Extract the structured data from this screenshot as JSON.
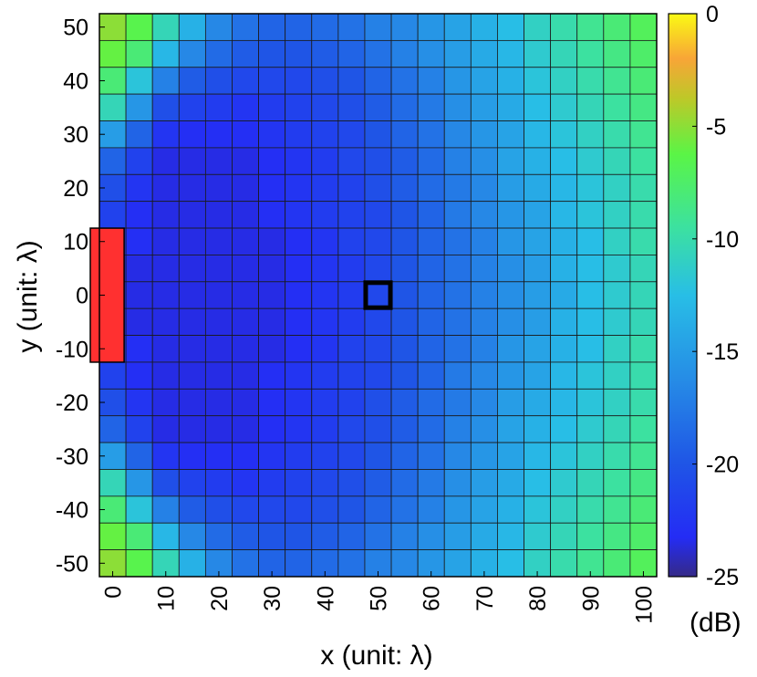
{
  "chart_data": {
    "type": "heatmap",
    "xlabel": "x (unit: λ)",
    "ylabel": "y (unit: λ)",
    "colorbar_label": "(dB)",
    "x": [
      0,
      5,
      10,
      15,
      20,
      25,
      30,
      35,
      40,
      45,
      50,
      55,
      60,
      65,
      70,
      75,
      80,
      85,
      90,
      95,
      100
    ],
    "y": [
      50,
      45,
      40,
      35,
      30,
      25,
      20,
      15,
      10,
      5,
      0,
      -5,
      -10,
      -15,
      -20,
      -25,
      -30,
      -35,
      -40,
      -45,
      -50
    ],
    "x_ticks": [
      0,
      10,
      20,
      30,
      40,
      50,
      60,
      70,
      80,
      90,
      100
    ],
    "y_ticks": [
      50,
      40,
      30,
      20,
      10,
      0,
      -10,
      -20,
      -30,
      -40,
      -50
    ],
    "xlim": [
      -2.5,
      102.5
    ],
    "ylim": [
      -52.5,
      52.5
    ],
    "clim": [
      -25,
      0
    ],
    "colorbar_ticks": [
      0,
      -5,
      -10,
      -15,
      -20,
      -25
    ],
    "colormap": "parula",
    "values": [
      [
        -5,
        -6.5,
        -10.5,
        -13.5,
        -16.5,
        -18,
        -19,
        -19,
        -18.5,
        -18,
        -17,
        -16.5,
        -15.5,
        -14.5,
        -13.5,
        -12.5,
        -11,
        -10,
        -9,
        -8,
        -7
      ],
      [
        -6,
        -8,
        -13,
        -16.5,
        -18.5,
        -19.5,
        -20,
        -20,
        -19.5,
        -19,
        -18,
        -17,
        -16,
        -15,
        -14,
        -13,
        -11.5,
        -10.5,
        -9.5,
        -8.5,
        -7.5
      ],
      [
        -8,
        -12,
        -17,
        -19.5,
        -20.5,
        -21,
        -21,
        -21,
        -20.5,
        -20,
        -19,
        -18,
        -17,
        -15.5,
        -14.5,
        -13.5,
        -12,
        -11,
        -10,
        -9,
        -8
      ],
      [
        -10.5,
        -15.5,
        -20.5,
        -21.5,
        -22,
        -22.5,
        -22,
        -21.5,
        -21,
        -20.5,
        -19.5,
        -18.5,
        -17.5,
        -16,
        -15,
        -14,
        -12.5,
        -11.5,
        -10.5,
        -9.5,
        -8.5
      ],
      [
        -15,
        -19,
        -22.5,
        -23,
        -23,
        -23,
        -22.5,
        -22,
        -21.5,
        -21,
        -20,
        -19,
        -18,
        -16.5,
        -15.5,
        -14.5,
        -13,
        -12,
        -11,
        -10,
        -9
      ],
      [
        -19,
        -21.5,
        -23.5,
        -23.5,
        -23.5,
        -23.5,
        -23,
        -22.5,
        -22,
        -21,
        -20.5,
        -19.5,
        -18.5,
        -17,
        -16,
        -14.5,
        -13.5,
        -12.5,
        -11.5,
        -10.5,
        -9.5
      ],
      [
        -20.5,
        -22.5,
        -23.5,
        -23.5,
        -23.5,
        -23.5,
        -23,
        -22.5,
        -22,
        -21.5,
        -20.5,
        -19.5,
        -18.5,
        -17.5,
        -16.5,
        -15,
        -14,
        -13,
        -12,
        -11,
        -10
      ],
      [
        -21.5,
        -23,
        -23.5,
        -23.5,
        -23.5,
        -23.5,
        -23,
        -22.5,
        -22,
        -21.5,
        -21,
        -20,
        -19,
        -17.5,
        -16.5,
        -15.5,
        -14.5,
        -13,
        -12,
        -11,
        -10
      ],
      [
        -22,
        -23,
        -23.5,
        -23.5,
        -23.5,
        -23.5,
        -23.5,
        -23,
        -22.5,
        -21.5,
        -21,
        -20,
        -19,
        -18,
        -17,
        -15.5,
        -14.5,
        -13.5,
        -12.5,
        -11,
        -10
      ],
      [
        -22.5,
        -23.5,
        -23.5,
        -23.5,
        -23.5,
        -23.5,
        -23.5,
        -23,
        -22.5,
        -22,
        -21,
        -20,
        -19,
        -18,
        -17,
        -16,
        -15,
        -13.5,
        -12.5,
        -11.5,
        -10.5
      ],
      [
        -22.5,
        -23.5,
        -23.5,
        -23.5,
        -23.5,
        -23.5,
        -23.5,
        -23,
        -22.5,
        -22,
        -21,
        -20,
        -19,
        -18,
        -17,
        -16,
        -15,
        -14,
        -12.5,
        -11.5,
        -10.5
      ],
      [
        -22.5,
        -23.5,
        -23.5,
        -23.5,
        -23.5,
        -23.5,
        -23.5,
        -23,
        -22.5,
        -22,
        -21,
        -20,
        -19,
        -18,
        -17,
        -16,
        -15,
        -13.5,
        -12.5,
        -11.5,
        -10.5
      ],
      [
        -22,
        -23,
        -23.5,
        -23.5,
        -23.5,
        -23.5,
        -23.5,
        -23,
        -22.5,
        -21.5,
        -21,
        -20,
        -19,
        -18,
        -17,
        -15.5,
        -14.5,
        -13.5,
        -12.5,
        -11,
        -10
      ],
      [
        -21.5,
        -23,
        -23.5,
        -23.5,
        -23.5,
        -23.5,
        -23,
        -22.5,
        -22,
        -21.5,
        -21,
        -20,
        -19,
        -17.5,
        -16.5,
        -15.5,
        -14.5,
        -13,
        -12,
        -11,
        -10
      ],
      [
        -20.5,
        -22.5,
        -23.5,
        -23.5,
        -23.5,
        -23.5,
        -23,
        -22.5,
        -22,
        -21.5,
        -20.5,
        -19.5,
        -18.5,
        -17.5,
        -16.5,
        -15,
        -14,
        -13,
        -12,
        -11,
        -10
      ],
      [
        -19,
        -21.5,
        -23.5,
        -23.5,
        -23.5,
        -23.5,
        -23,
        -22.5,
        -22,
        -21,
        -20.5,
        -19.5,
        -18.5,
        -17,
        -16,
        -14.5,
        -13.5,
        -12.5,
        -11.5,
        -10.5,
        -9.5
      ],
      [
        -15,
        -19,
        -22.5,
        -23,
        -23,
        -23,
        -22.5,
        -22,
        -21.5,
        -21,
        -20,
        -19,
        -18,
        -16.5,
        -15.5,
        -14.5,
        -13,
        -12,
        -11,
        -10,
        -9
      ],
      [
        -10.5,
        -15.5,
        -20.5,
        -21.5,
        -22,
        -22.5,
        -22,
        -21.5,
        -21,
        -20.5,
        -19.5,
        -18.5,
        -17.5,
        -16,
        -15,
        -14,
        -12.5,
        -11.5,
        -10.5,
        -9.5,
        -8.5
      ],
      [
        -8,
        -12,
        -17,
        -19.5,
        -20.5,
        -21,
        -21,
        -21,
        -20.5,
        -20,
        -19,
        -18,
        -17,
        -15.5,
        -14.5,
        -13.5,
        -12,
        -11,
        -10,
        -9,
        -8
      ],
      [
        -6,
        -8,
        -13,
        -16.5,
        -18.5,
        -19.5,
        -20,
        -20,
        -19.5,
        -19,
        -18,
        -17,
        -16,
        -15,
        -14,
        -13,
        -11.5,
        -10.5,
        -9.5,
        -8.5,
        -7.5
      ],
      [
        -5,
        -6.5,
        -10.5,
        -13.5,
        -16.5,
        -18,
        -19,
        -19,
        -18.5,
        -18,
        -17,
        -16.5,
        -15.5,
        -14.5,
        -13.5,
        -12.5,
        -11,
        -10,
        -9,
        -8,
        -7
      ]
    ],
    "markers": [
      {
        "kind": "filled-rectangle",
        "color": "#ff3030",
        "x_range": [
          -2.5,
          2.5
        ],
        "y_range": [
          -12.5,
          12.5
        ]
      },
      {
        "kind": "outlined-square",
        "color": "#000000",
        "x_range": [
          47.5,
          52.5
        ],
        "y_range": [
          -2.5,
          2.5
        ]
      }
    ]
  }
}
